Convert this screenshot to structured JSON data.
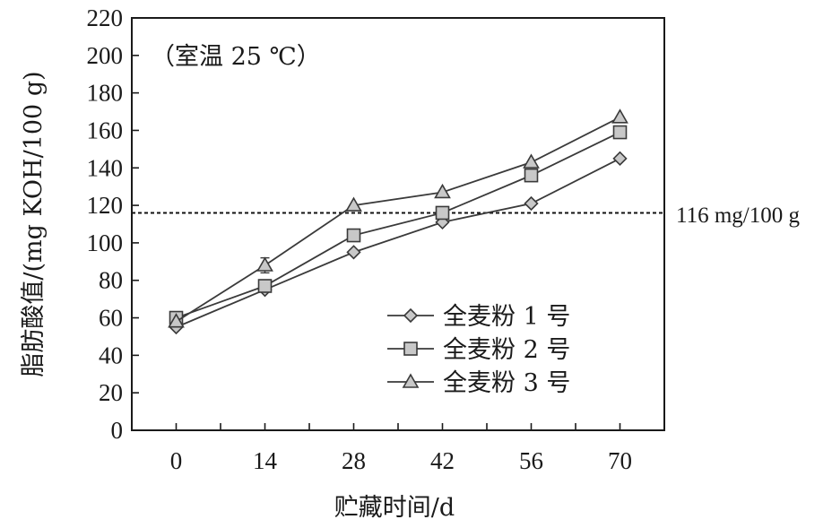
{
  "chart_data": {
    "type": "line",
    "title": "",
    "xlabel": "贮藏时间/d",
    "ylabel": "脂肪酸值/(mg KOH/100 g)",
    "annotation": "（室温 25 ℃）",
    "x": [
      0,
      14,
      28,
      42,
      56,
      70
    ],
    "x_tick_labels": [
      "0",
      "14",
      "28",
      "42",
      "56",
      "70"
    ],
    "xlim": [
      -7,
      77
    ],
    "y_ticks": [
      0,
      20,
      40,
      60,
      80,
      100,
      120,
      140,
      160,
      180,
      200,
      220
    ],
    "ylim": [
      0,
      220
    ],
    "grid": false,
    "legend_position": "center-right",
    "series": [
      {
        "name": "全麦粉 1 号",
        "marker": "diamond",
        "values": [
          55,
          75,
          95,
          111,
          121,
          145
        ],
        "errors": [
          0,
          0,
          0,
          0,
          0,
          0
        ]
      },
      {
        "name": "全麦粉 2 号",
        "marker": "square",
        "values": [
          60,
          77,
          104,
          116,
          136,
          159
        ],
        "errors": [
          0,
          0,
          0,
          0,
          0,
          0
        ]
      },
      {
        "name": "全麦粉 3 号",
        "marker": "triangle",
        "values": [
          58,
          88,
          120,
          127,
          143,
          167
        ],
        "errors": [
          0,
          4,
          0,
          0,
          0,
          0
        ]
      }
    ],
    "reference_line": {
      "value": 116,
      "label": "116 mg/100 g",
      "style": "dashed"
    },
    "colors": {
      "line": "#3a3a3a",
      "marker_fill": "#c8c8c8",
      "marker_stroke": "#3a3a3a",
      "axis": "#1a1a1a"
    }
  }
}
